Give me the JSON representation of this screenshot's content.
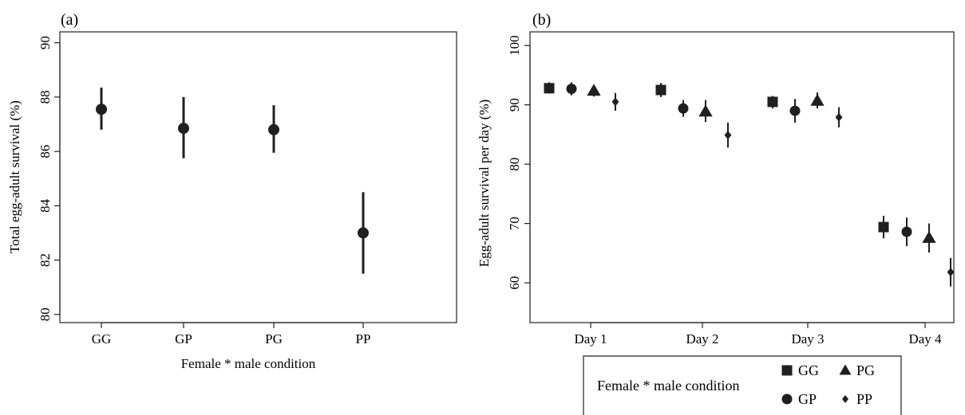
{
  "chart_data": [
    {
      "panel": "(a)",
      "type": "scatter",
      "categories": [
        "GG",
        "GP",
        "PG",
        "PP"
      ],
      "values": [
        87.55,
        86.85,
        86.8,
        83.0
      ],
      "error_low": [
        86.8,
        85.75,
        85.95,
        81.5
      ],
      "error_high": [
        88.35,
        88.0,
        87.7,
        84.5
      ],
      "xlabel": "Female * male condition",
      "ylabel": "Total egg-adult survival (%)",
      "ylim": [
        79.7,
        90.4
      ],
      "yticks": [
        80,
        82,
        84,
        86,
        88,
        90
      ],
      "marker": "circle",
      "grid": false
    },
    {
      "panel": "(b)",
      "type": "scatter",
      "categories": [
        "Day 1",
        "Day 2",
        "Day 3",
        "Day 4"
      ],
      "series": [
        {
          "name": "GG",
          "marker": "square",
          "values": [
            92.8,
            92.5,
            90.5,
            69.4
          ],
          "error_low": [
            91.9,
            91.3,
            89.4,
            67.5
          ],
          "error_high": [
            93.8,
            93.7,
            91.5,
            71.3
          ]
        },
        {
          "name": "GP",
          "marker": "circle",
          "values": [
            92.7,
            89.4,
            89.0,
            68.6
          ],
          "error_low": [
            91.6,
            88.0,
            87.0,
            66.2
          ],
          "error_high": [
            93.8,
            90.8,
            91.0,
            71.0
          ]
        },
        {
          "name": "PG",
          "marker": "triangle",
          "values": [
            92.4,
            88.9,
            90.7,
            67.6
          ],
          "error_low": [
            91.4,
            87.1,
            89.4,
            65.1
          ],
          "error_high": [
            93.3,
            90.8,
            92.1,
            70.0
          ]
        },
        {
          "name": "PP",
          "marker": "diamond",
          "values": [
            90.5,
            84.9,
            87.9,
            61.8
          ],
          "error_low": [
            89.0,
            82.8,
            86.2,
            59.4
          ],
          "error_high": [
            92.0,
            87.0,
            89.6,
            64.2
          ]
        }
      ],
      "ylabel": "Egg-adult survival per day (%)",
      "ylim": [
        53.3,
        102.3
      ],
      "yticks": [
        60,
        70,
        80,
        90,
        100
      ],
      "grid": false,
      "legend": {
        "title": "Female * male condition",
        "placement": "bottom",
        "entries": [
          {
            "label": "GG",
            "marker": "square"
          },
          {
            "label": "PG",
            "marker": "triangle"
          },
          {
            "label": "GP",
            "marker": "circle"
          },
          {
            "label": "PP",
            "marker": "diamond"
          }
        ]
      }
    }
  ]
}
